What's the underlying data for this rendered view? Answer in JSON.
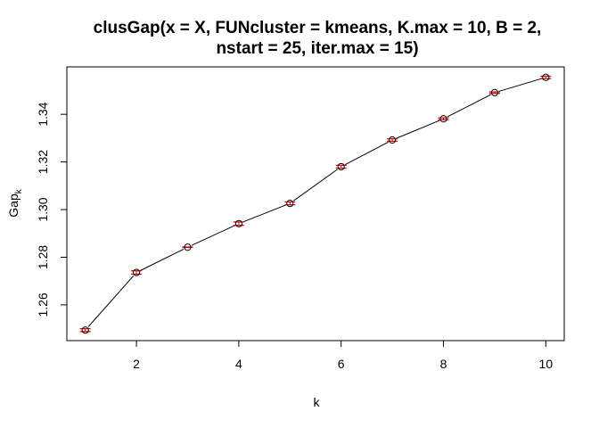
{
  "chart_data": {
    "type": "line",
    "title_lines": [
      "clusGap(x = X, FUNcluster = kmeans, K.max = 10, B = 2,",
      "nstart = 25, iter.max = 15)"
    ],
    "xlabel": "k",
    "ylabel_main": "Gap",
    "ylabel_sub": "k",
    "x": [
      1,
      2,
      3,
      4,
      5,
      6,
      7,
      8,
      9,
      10
    ],
    "y": [
      1.2494,
      1.2736,
      1.2842,
      1.2941,
      1.3026,
      1.318,
      1.3292,
      1.3381,
      1.3491,
      1.3555
    ],
    "se": [
      0.0006,
      0.0007,
      0.0001,
      0.0007,
      0.0006,
      0.0006,
      0.0005,
      0.0004,
      0.0003,
      0.0005
    ],
    "xlim": [
      0.64,
      10.36
    ],
    "ylim": [
      1.245,
      1.3599
    ],
    "xticks": [
      2,
      4,
      6,
      8,
      10
    ],
    "yticks": [
      1.26,
      1.28,
      1.3,
      1.32,
      1.34
    ],
    "xtick_labels": [
      "2",
      "4",
      "6",
      "8",
      "10"
    ],
    "ytick_labels": [
      "1.26",
      "1.28",
      "1.30",
      "1.32",
      "1.34"
    ],
    "line_color": "#000000",
    "point_color": "#000000",
    "errorbar_color": "#cc0000",
    "grid": false,
    "legend": "none"
  }
}
